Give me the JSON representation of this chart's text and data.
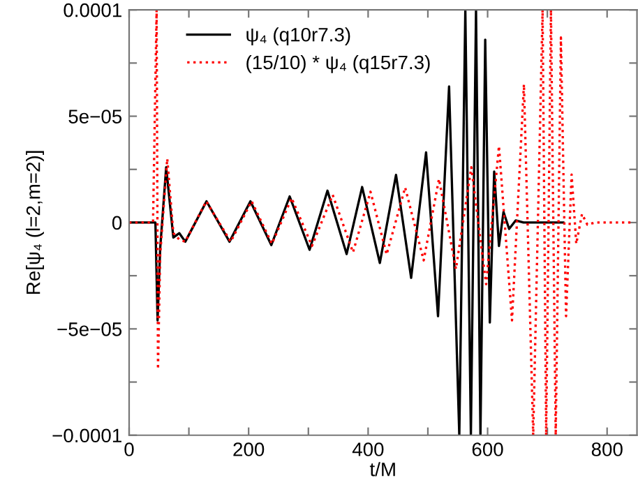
{
  "chart_data": {
    "type": "line",
    "xlabel": "t/M",
    "ylabel": "Re[ψ₄ (l=2,m=2)]",
    "xlim": [
      0,
      850
    ],
    "ylim": [
      -0.0001,
      0.0001
    ],
    "xticks": [
      0,
      {
        "value": 100,
        "label": null
      },
      200,
      {
        "value": 300,
        "label": null
      },
      400,
      {
        "value": 500,
        "label": null
      },
      600,
      {
        "value": 700,
        "label": null
      },
      800
    ],
    "yticks": [
      {
        "value": -0.0001,
        "label": "−0.0001"
      },
      {
        "value": -7.5e-05,
        "label": null
      },
      {
        "value": -5e-05,
        "label": "−5e−05"
      },
      {
        "value": -2.5e-05,
        "label": null
      },
      0,
      {
        "value": 2.5e-05,
        "label": null
      },
      {
        "value": 5e-05,
        "label": "5e−05"
      },
      {
        "value": 7.5e-05,
        "label": null
      },
      {
        "value": 0.0001,
        "label": "0.0001"
      }
    ],
    "grid": false,
    "legend": "top left",
    "marker": "none",
    "series": [
      {
        "name": "ψ₄ (q10r7.3)",
        "color": "#000000",
        "line_style": "solid",
        "x": [
          0,
          44,
          47.6,
          52,
          62,
          74,
          84,
          94,
          129.5,
          168,
          203,
          238,
          268.7,
          302,
          332,
          364,
          390,
          419.6,
          446.7,
          472,
          497,
          517,
          535.5,
          552.6,
          562.7,
          572,
          580.6,
          588,
          596,
          603.7,
          611,
          619,
          626.6,
          636,
          647,
          660,
          726.6
        ],
        "values": [
          0,
          0,
          -4.6e-05,
          -1.2e-05,
          2.6e-05,
          -7e-06,
          -5e-06,
          -9e-06,
          1e-05,
          -9e-06,
          1e-05,
          -1.06e-05,
          1.23e-05,
          -1.28e-05,
          1.5e-05,
          -1.48e-05,
          1.67e-05,
          -1.9e-05,
          2.24e-05,
          -2.6e-05,
          3.3e-05,
          -4.4e-05,
          6.4e-05,
          -0.0001,
          0.0001,
          -0.0001,
          0.0001,
          -0.0001,
          8.6e-05,
          -4.7e-05,
          2.4e-05,
          -1.1e-05,
          5e-06,
          -3e-06,
          1e-06,
          0,
          0
        ]
      },
      {
        "name": "(15/10) * ψ₄ (q15r7.3)",
        "color": "#ff0000",
        "line_style": "dotted",
        "x": [
          0,
          40,
          46,
          48.3,
          52,
          63.8,
          74,
          84,
          94,
          129,
          170,
          205,
          239,
          272,
          306,
          340.7,
          374.7,
          404,
          431,
          462,
          493,
          518.6,
          547,
          572.7,
          597.5,
          619,
          640.8,
          660.8,
          676.3,
          692,
          698,
          706,
          714,
          722.7,
          731.3,
          740.6,
          748.4,
          758,
          767,
          780,
          843
        ],
        "values": [
          0,
          0,
          0.0001,
          -6.9e-05,
          -1.5e-05,
          3e-05,
          -5e-06,
          -8e-06,
          -9e-06,
          1e-05,
          -9e-06,
          1e-05,
          -1e-05,
          1.15e-05,
          -1.1e-05,
          1.3e-05,
          -1.4e-05,
          1.45e-05,
          -1.5e-05,
          1.65e-05,
          -1.78e-05,
          2.05e-05,
          -2.18e-05,
          2.6e-05,
          -2.9e-05,
          3.6e-05,
          -4.6e-05,
          6.5e-05,
          -0.0001,
          0.0001,
          -0.0001,
          0.0001,
          -0.0001,
          8.7e-05,
          -4.4e-05,
          2.26e-05,
          -1e-05,
          4e-06,
          -1e-06,
          0,
          0
        ]
      }
    ]
  }
}
